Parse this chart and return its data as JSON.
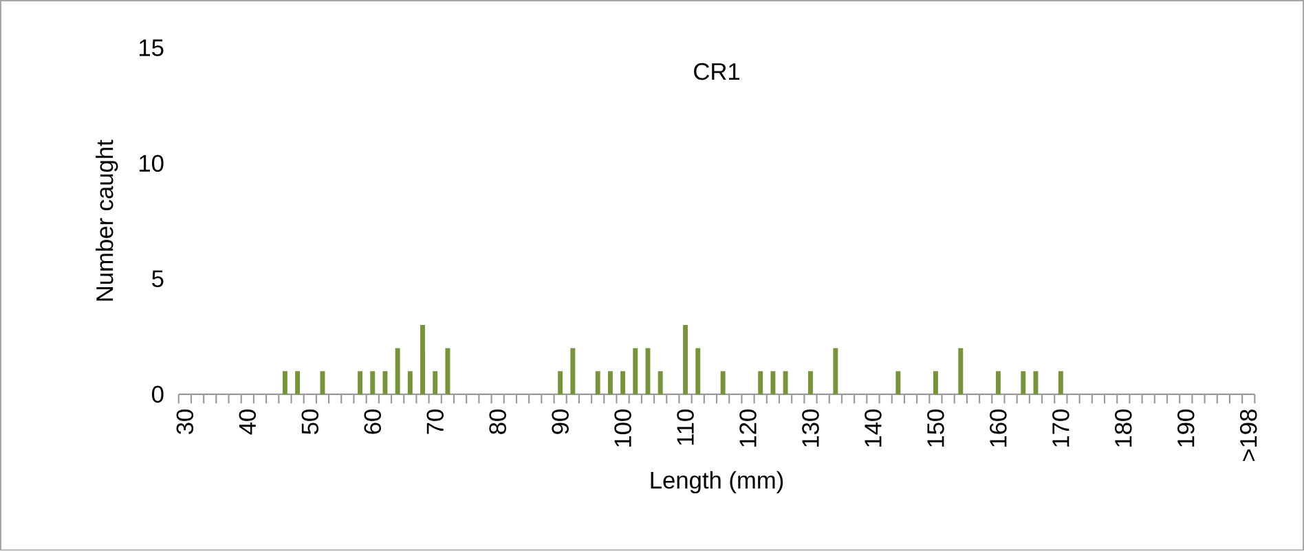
{
  "chart_data": {
    "type": "bar",
    "title": "CR1",
    "xlabel": "Length (mm)",
    "ylabel": "Number caught",
    "categories": [
      "30",
      null,
      null,
      null,
      null,
      "40",
      null,
      null,
      null,
      null,
      "50",
      null,
      null,
      null,
      null,
      "60",
      null,
      null,
      null,
      null,
      "70",
      null,
      null,
      null,
      null,
      "80",
      null,
      null,
      null,
      null,
      "90",
      null,
      null,
      null,
      null,
      "100",
      null,
      null,
      null,
      null,
      "110",
      null,
      null,
      null,
      null,
      "120",
      null,
      null,
      null,
      null,
      "130",
      null,
      null,
      null,
      null,
      "140",
      null,
      null,
      null,
      null,
      "150",
      null,
      null,
      null,
      null,
      "160",
      null,
      null,
      null,
      null,
      "170",
      null,
      null,
      null,
      null,
      "180",
      null,
      null,
      null,
      null,
      "190",
      null,
      null,
      null,
      null,
      ">198"
    ],
    "values": [
      0,
      0,
      0,
      0,
      0,
      0,
      0,
      0,
      1,
      1,
      0,
      1,
      0,
      0,
      1,
      1,
      1,
      2,
      1,
      3,
      1,
      2,
      0,
      0,
      0,
      0,
      0,
      0,
      0,
      0,
      1,
      2,
      0,
      1,
      1,
      1,
      2,
      2,
      1,
      0,
      3,
      2,
      0,
      1,
      0,
      0,
      1,
      1,
      1,
      0,
      1,
      0,
      2,
      0,
      0,
      0,
      0,
      1,
      0,
      0,
      1,
      0,
      2,
      0,
      0,
      1,
      0,
      1,
      1,
      0,
      1,
      0,
      0,
      0,
      0,
      0,
      0,
      0,
      0,
      0,
      0,
      0,
      0,
      0,
      0,
      0
    ],
    "color": "#77933c",
    "ylim": [
      0,
      15
    ],
    "yticks": [
      0,
      5,
      10,
      15
    ],
    "grid": false
  }
}
